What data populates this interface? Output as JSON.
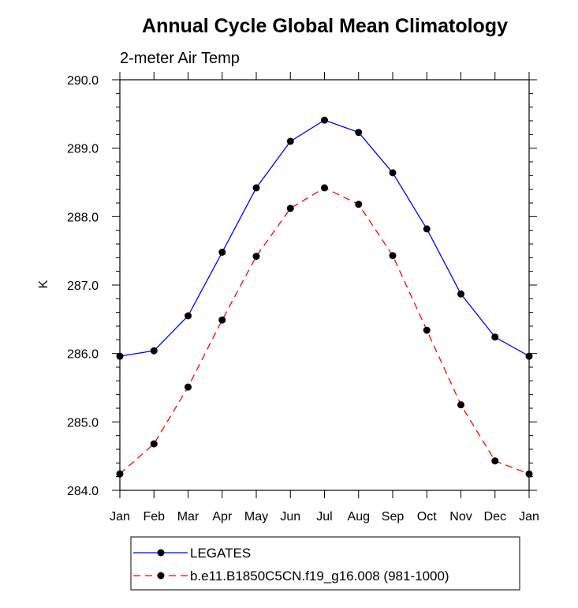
{
  "chart_data": {
    "type": "line",
    "title": "Annual Cycle Global Mean Climatology",
    "subtitle": "2-meter Air Temp",
    "ylabel": "K",
    "xlabel": "",
    "categories": [
      "Jan",
      "Feb",
      "Mar",
      "Apr",
      "May",
      "Jun",
      "Jul",
      "Aug",
      "Sep",
      "Oct",
      "Nov",
      "Dec",
      "Jan"
    ],
    "ylim": [
      284.0,
      290.0
    ],
    "yticks": [
      284.0,
      285.0,
      286.0,
      287.0,
      288.0,
      289.0,
      290.0
    ],
    "ytick_labels": [
      "284.0",
      "285.0",
      "286.0",
      "287.0",
      "288.0",
      "289.0",
      "290.0"
    ],
    "grid": false,
    "legend_position": "bottom",
    "series": [
      {
        "name": "LEGATES",
        "color": "#0000ff",
        "line_style": "solid",
        "marker": "filled-circle",
        "values": [
          285.96,
          286.04,
          286.55,
          287.48,
          288.42,
          289.1,
          289.41,
          289.23,
          288.64,
          287.82,
          286.87,
          286.24,
          285.96
        ]
      },
      {
        "name": "b.e11.B1850C5CN.f19_g16.008 (981-1000)",
        "color": "#ff0000",
        "line_style": "dashed",
        "marker": "filled-circle",
        "values": [
          284.24,
          284.68,
          285.51,
          286.49,
          287.42,
          288.12,
          288.42,
          288.18,
          287.43,
          286.34,
          285.25,
          284.43,
          284.24
        ]
      }
    ]
  }
}
